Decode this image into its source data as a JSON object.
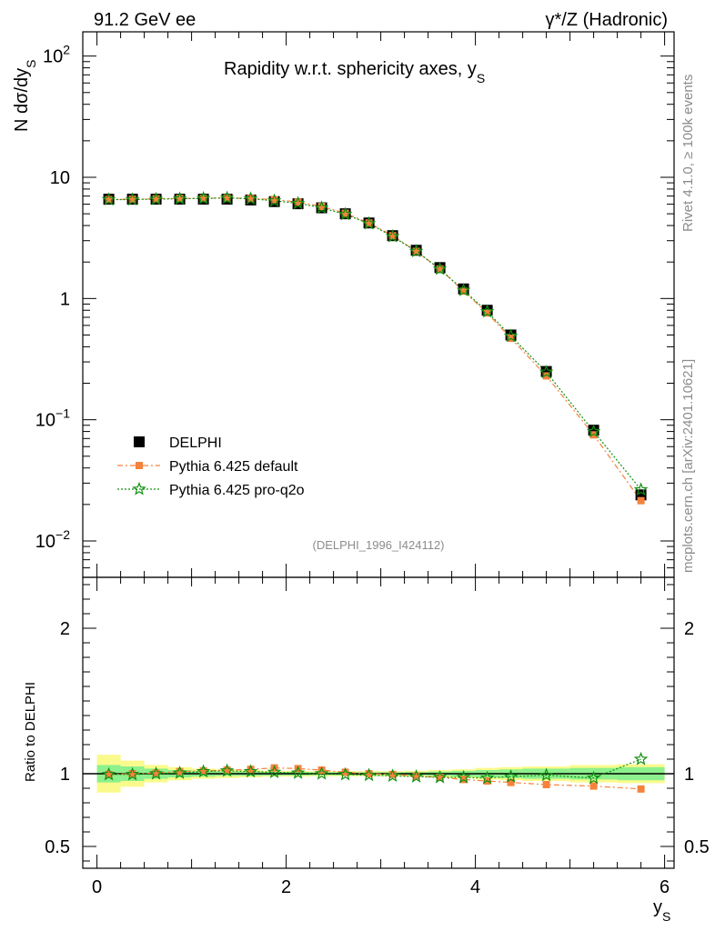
{
  "header": {
    "energy_label": "91.2 GeV ee",
    "process_label": "γ*/Z (Hadronic)"
  },
  "side_labels": {
    "rivet": "Rivet 4.1.0, ≥ 100k events",
    "mcplots": "mcplots.cern.ch [arXiv:2401.10621]"
  },
  "chart_data": {
    "type": "scatter",
    "title": "Rapidity w.r.t. sphericity axes, y",
    "title_sub": "S",
    "analysis_id": "(DELPHI_1996_I424112)",
    "ylabel_main": "N  dσ/dy",
    "ylabel_main_sub": "S",
    "ylabel_ratio": "Ratio to DELPHI",
    "xlabel": "y",
    "xlabel_sub": "S",
    "xlim": [
      -0.15,
      6.1
    ],
    "ylim_main_log10": [
      -2.3,
      2.2
    ],
    "ylim_ratio": [
      0.35,
      2.35
    ],
    "x_ticks": [
      {
        "value": 0,
        "label": "0"
      },
      {
        "value": 2,
        "label": "2"
      },
      {
        "value": 4,
        "label": "4"
      },
      {
        "value": 6,
        "label": "6"
      }
    ],
    "y_ticks_main": [
      {
        "value": 100,
        "base": "10",
        "exp": "2"
      },
      {
        "value": 10,
        "base": "10",
        "exp": ""
      },
      {
        "value": 1,
        "base": "1",
        "exp": ""
      },
      {
        "value": 0.1,
        "base": "10",
        "exp": "−1"
      },
      {
        "value": 0.01,
        "base": "10",
        "exp": "−2"
      }
    ],
    "y_ticks_ratio": [
      {
        "value": 2,
        "label": "2"
      },
      {
        "value": 1,
        "label": "1"
      },
      {
        "value": 0.5,
        "label": "0.5"
      }
    ],
    "legend": [
      {
        "name": "DELPHI",
        "marker": "square",
        "color": "#000000"
      },
      {
        "name": "Pythia 6.425 default",
        "marker": "small-square",
        "color": "#f5823c"
      },
      {
        "name": "Pythia 6.425 pro-q2o",
        "marker": "star",
        "color": "#109010"
      }
    ],
    "x": [
      0.125,
      0.375,
      0.625,
      0.875,
      1.125,
      1.375,
      1.625,
      1.875,
      2.125,
      2.375,
      2.625,
      2.875,
      3.125,
      3.375,
      3.625,
      3.875,
      4.125,
      4.375,
      4.75,
      5.25,
      5.75
    ],
    "series": [
      {
        "name": "DELPHI",
        "values": [
          6.6,
          6.6,
          6.6,
          6.6,
          6.6,
          6.6,
          6.5,
          6.3,
          6.05,
          5.6,
          5.0,
          4.2,
          3.3,
          2.5,
          1.8,
          1.2,
          0.8,
          0.5,
          0.25,
          0.082,
          0.024
        ]
      },
      {
        "name": "Pythia 6.425 default",
        "values": [
          6.55,
          6.6,
          6.65,
          6.7,
          6.7,
          6.75,
          6.7,
          6.55,
          6.25,
          5.75,
          5.05,
          4.2,
          3.3,
          2.45,
          1.75,
          1.15,
          0.76,
          0.47,
          0.23,
          0.075,
          0.0215
        ]
      },
      {
        "name": "Pythia 6.425 pro-q2o",
        "values": [
          6.55,
          6.55,
          6.6,
          6.65,
          6.7,
          6.75,
          6.65,
          6.4,
          6.1,
          5.6,
          4.95,
          4.15,
          3.25,
          2.45,
          1.75,
          1.17,
          0.78,
          0.49,
          0.247,
          0.08,
          0.0265
        ]
      }
    ],
    "ratio_series": [
      {
        "name": "Pythia 6.425 default",
        "values": [
          0.995,
          1.0,
          1.005,
          1.015,
          1.02,
          1.025,
          1.03,
          1.04,
          1.035,
          1.025,
          1.01,
          1.0,
          0.995,
          0.985,
          0.975,
          0.96,
          0.95,
          0.94,
          0.925,
          0.915,
          0.895
        ]
      },
      {
        "name": "Pythia 6.425 pro-q2o",
        "values": [
          0.995,
          0.995,
          1.0,
          1.005,
          1.015,
          1.02,
          1.015,
          1.01,
          1.005,
          1.0,
          0.995,
          0.99,
          0.985,
          0.98,
          0.975,
          0.975,
          0.97,
          0.98,
          0.99,
          0.97,
          1.1
        ]
      }
    ],
    "band_x_edges": [
      0.0,
      0.25,
      0.5,
      0.75,
      1.0,
      1.25,
      1.5,
      1.75,
      2.0,
      2.25,
      2.5,
      2.75,
      3.0,
      3.25,
      3.5,
      3.75,
      4.0,
      4.25,
      4.5,
      5.0,
      5.5,
      6.0
    ],
    "band_green_halfwidth": [
      0.06,
      0.05,
      0.035,
      0.025,
      0.02,
      0.015,
      0.015,
      0.012,
      0.012,
      0.01,
      0.01,
      0.01,
      0.01,
      0.012,
      0.015,
      0.02,
      0.025,
      0.03,
      0.035,
      0.04,
      0.045
    ],
    "band_yellow_halfwidth": [
      0.13,
      0.09,
      0.06,
      0.045,
      0.035,
      0.03,
      0.025,
      0.02,
      0.02,
      0.018,
      0.018,
      0.018,
      0.018,
      0.02,
      0.025,
      0.03,
      0.04,
      0.045,
      0.05,
      0.06,
      0.065
    ]
  }
}
